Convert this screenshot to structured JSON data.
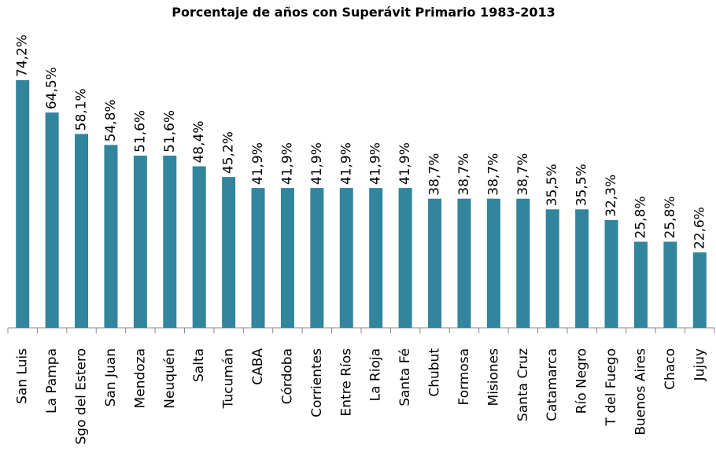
{
  "chart_data": {
    "type": "bar",
    "title": "Porcentaje de años con Superávit Primario 1983-2013",
    "categories": [
      "San Luis",
      "La Pampa",
      "Sgo del Estero",
      "San Juan",
      "Mendoza",
      "Neuquén",
      "Salta",
      "Tucumán",
      "CABA",
      "Córdoba",
      "Corrientes",
      "Entre Ríos",
      "La Rioja",
      "Santa Fé",
      "Chubut",
      "Formosa",
      "Misiones",
      "Santa Cruz",
      "Catamarca",
      "Río Negro",
      "T del Fuego",
      "Buenos Aires",
      "Chaco",
      "Jujuy"
    ],
    "values": [
      74.2,
      64.5,
      58.1,
      54.8,
      51.6,
      51.6,
      48.4,
      45.2,
      41.9,
      41.9,
      41.9,
      41.9,
      41.9,
      41.9,
      38.7,
      38.7,
      38.7,
      38.7,
      35.5,
      35.5,
      32.3,
      25.8,
      25.8,
      22.6
    ],
    "value_labels": [
      "74,2%",
      "64,5%",
      "58,1%",
      "54,8%",
      "51,6%",
      "51,6%",
      "48,4%",
      "45,2%",
      "41,9%",
      "41,9%",
      "41,9%",
      "41,9%",
      "41,9%",
      "41,9%",
      "38,7%",
      "38,7%",
      "38,7%",
      "38,7%",
      "35,5%",
      "35,5%",
      "32,3%",
      "25,8%",
      "25,8%",
      "22,6%"
    ],
    "color": "#31859c"
  }
}
